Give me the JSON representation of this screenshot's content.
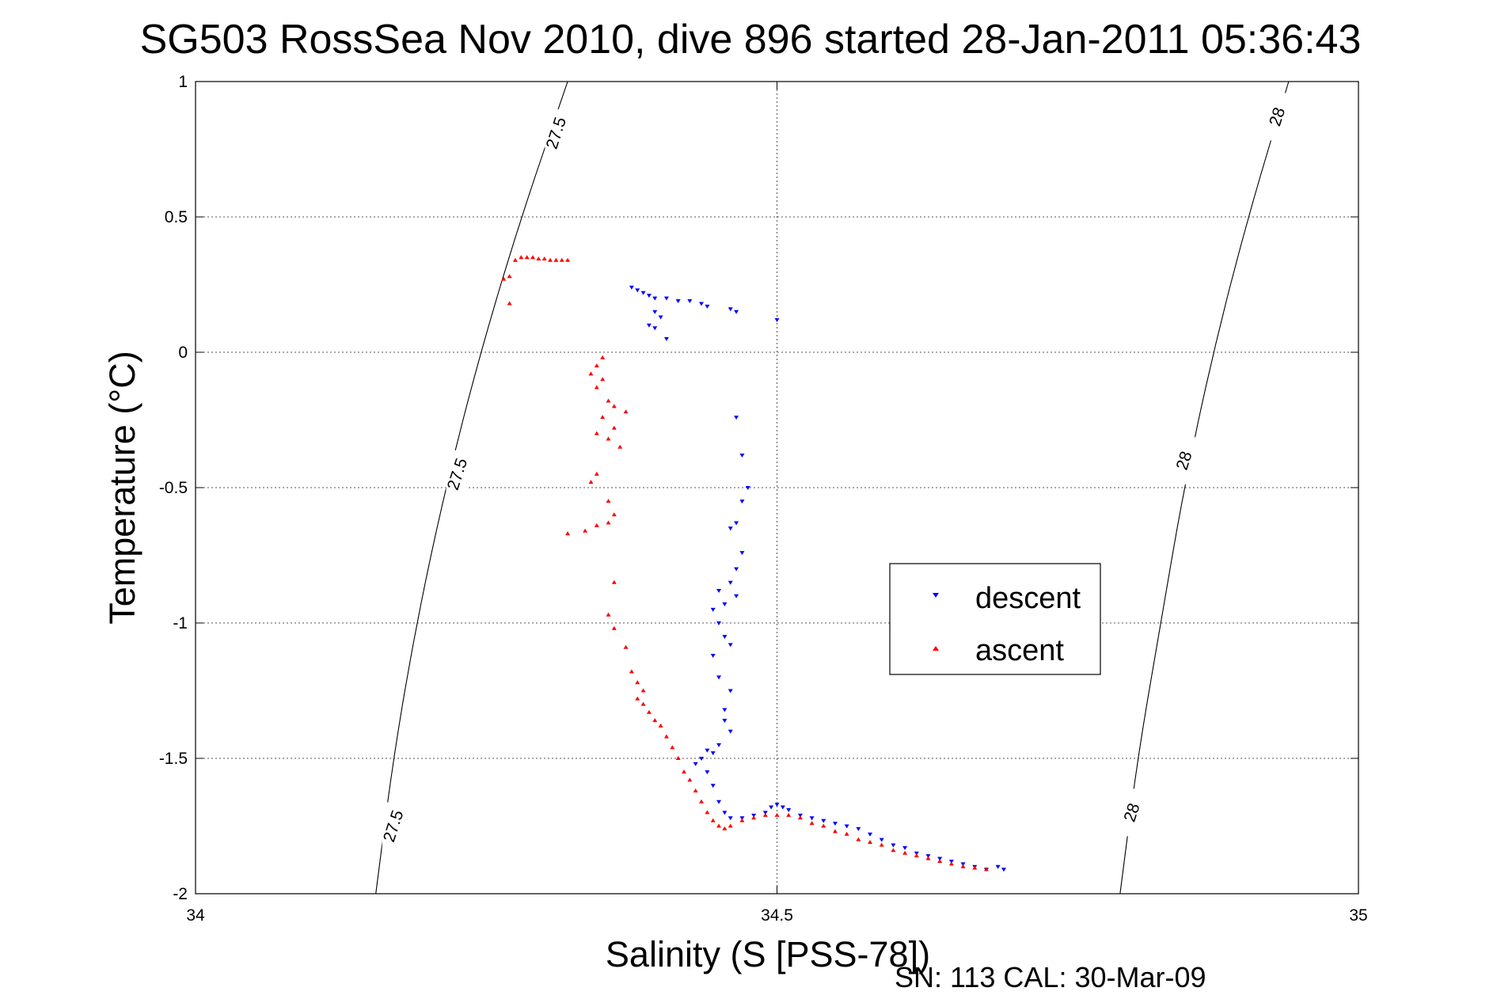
{
  "chart_data": {
    "type": "scatter",
    "title": "SG503 RossSea Nov 2010, dive 896 started 28-Jan-2011 05:36:43",
    "xlabel": "Salinity (S [PSS-78])",
    "ylabel": "Temperature (°C)",
    "xlim": [
      34,
      35
    ],
    "ylim": [
      -2,
      1
    ],
    "xticks": [
      "34",
      "34.5",
      "35"
    ],
    "yticks": [
      "1",
      "0.5",
      "0",
      "-0.5",
      "-1",
      "-1.5",
      "-2"
    ],
    "grid": true,
    "legend_position": "right-center",
    "footer": "SN: 113  CAL: 30-Mar-09",
    "density_contours": [
      {
        "level": "27.5",
        "points": [
          [
            34.32,
            1.0
          ],
          [
            34.28,
            0.5
          ],
          [
            34.245,
            0.0
          ],
          [
            34.215,
            -0.5
          ],
          [
            34.19,
            -1.0
          ],
          [
            34.17,
            -1.5
          ],
          [
            34.155,
            -2.0
          ]
        ],
        "label_positions": [
          [
            34.31,
            0.81
          ],
          [
            34.225,
            -0.45
          ],
          [
            34.17,
            -1.75
          ]
        ]
      },
      {
        "level": "28",
        "points": [
          [
            34.94,
            1.0
          ],
          [
            34.905,
            0.5
          ],
          [
            34.875,
            0.0
          ],
          [
            34.85,
            -0.5
          ],
          [
            34.83,
            -1.0
          ],
          [
            34.81,
            -1.5
          ],
          [
            34.795,
            -2.0
          ]
        ],
        "label_positions": [
          [
            34.93,
            0.87
          ],
          [
            34.85,
            -0.4
          ],
          [
            34.805,
            -1.7
          ]
        ]
      }
    ],
    "series": [
      {
        "name": "descent",
        "color": "#0000ff",
        "marker": "triangle-down",
        "points": [
          [
            34.375,
            0.24
          ],
          [
            34.38,
            0.23
          ],
          [
            34.385,
            0.22
          ],
          [
            34.39,
            0.21
          ],
          [
            34.395,
            0.2
          ],
          [
            34.405,
            0.2
          ],
          [
            34.415,
            0.19
          ],
          [
            34.425,
            0.19
          ],
          [
            34.435,
            0.18
          ],
          [
            34.44,
            0.17
          ],
          [
            34.46,
            0.16
          ],
          [
            34.465,
            0.15
          ],
          [
            34.5,
            0.12
          ],
          [
            34.395,
            0.15
          ],
          [
            34.4,
            0.13
          ],
          [
            34.39,
            0.1
          ],
          [
            34.395,
            0.09
          ],
          [
            34.405,
            0.05
          ],
          [
            34.465,
            -0.24
          ],
          [
            34.47,
            -0.38
          ],
          [
            34.475,
            -0.5
          ],
          [
            34.47,
            -0.55
          ],
          [
            34.465,
            -0.63
          ],
          [
            34.46,
            -0.65
          ],
          [
            34.47,
            -0.74
          ],
          [
            34.465,
            -0.8
          ],
          [
            34.46,
            -0.85
          ],
          [
            34.465,
            -0.9
          ],
          [
            34.45,
            -0.88
          ],
          [
            34.455,
            -0.93
          ],
          [
            34.445,
            -0.95
          ],
          [
            34.45,
            -1.0
          ],
          [
            34.455,
            -1.05
          ],
          [
            34.46,
            -1.08
          ],
          [
            34.445,
            -1.12
          ],
          [
            34.45,
            -1.2
          ],
          [
            34.46,
            -1.25
          ],
          [
            34.455,
            -1.32
          ],
          [
            34.455,
            -1.36
          ],
          [
            34.46,
            -1.4
          ],
          [
            34.45,
            -1.45
          ],
          [
            34.44,
            -1.47
          ],
          [
            34.445,
            -1.48
          ],
          [
            34.435,
            -1.5
          ],
          [
            34.43,
            -1.52
          ],
          [
            34.44,
            -1.55
          ],
          [
            34.445,
            -1.6
          ],
          [
            34.45,
            -1.66
          ],
          [
            34.455,
            -1.7
          ],
          [
            34.46,
            -1.72
          ],
          [
            34.47,
            -1.72
          ],
          [
            34.48,
            -1.71
          ],
          [
            34.49,
            -1.7
          ],
          [
            34.495,
            -1.68
          ],
          [
            34.5,
            -1.67
          ],
          [
            34.505,
            -1.68
          ],
          [
            34.51,
            -1.69
          ],
          [
            34.52,
            -1.71
          ],
          [
            34.53,
            -1.72
          ],
          [
            34.54,
            -1.73
          ],
          [
            34.55,
            -1.74
          ],
          [
            34.56,
            -1.75
          ],
          [
            34.57,
            -1.76
          ],
          [
            34.58,
            -1.78
          ],
          [
            34.59,
            -1.8
          ],
          [
            34.6,
            -1.82
          ],
          [
            34.61,
            -1.83
          ],
          [
            34.62,
            -1.85
          ],
          [
            34.63,
            -1.86
          ],
          [
            34.64,
            -1.87
          ],
          [
            34.65,
            -1.88
          ],
          [
            34.66,
            -1.89
          ],
          [
            34.67,
            -1.9
          ],
          [
            34.68,
            -1.91
          ],
          [
            34.69,
            -1.9
          ],
          [
            34.695,
            -1.91
          ]
        ]
      },
      {
        "name": "ascent",
        "color": "#ff0000",
        "marker": "triangle-up",
        "points": [
          [
            34.28,
            0.35
          ],
          [
            34.285,
            0.35
          ],
          [
            34.29,
            0.35
          ],
          [
            34.295,
            0.345
          ],
          [
            34.3,
            0.345
          ],
          [
            34.305,
            0.34
          ],
          [
            34.31,
            0.34
          ],
          [
            34.315,
            0.34
          ],
          [
            34.32,
            0.34
          ],
          [
            34.275,
            0.34
          ],
          [
            34.27,
            0.28
          ],
          [
            34.265,
            0.27
          ],
          [
            34.27,
            0.18
          ],
          [
            34.35,
            -0.02
          ],
          [
            34.345,
            -0.05
          ],
          [
            34.34,
            -0.08
          ],
          [
            34.35,
            -0.1
          ],
          [
            34.345,
            -0.13
          ],
          [
            34.355,
            -0.18
          ],
          [
            34.36,
            -0.2
          ],
          [
            34.35,
            -0.24
          ],
          [
            34.345,
            -0.3
          ],
          [
            34.355,
            -0.32
          ],
          [
            34.365,
            -0.35
          ],
          [
            34.37,
            -0.22
          ],
          [
            34.36,
            -0.28
          ],
          [
            34.345,
            -0.45
          ],
          [
            34.34,
            -0.48
          ],
          [
            34.355,
            -0.55
          ],
          [
            34.36,
            -0.6
          ],
          [
            34.355,
            -0.63
          ],
          [
            34.345,
            -0.64
          ],
          [
            34.335,
            -0.66
          ],
          [
            34.32,
            -0.67
          ],
          [
            34.36,
            -0.85
          ],
          [
            34.355,
            -0.97
          ],
          [
            34.36,
            -1.02
          ],
          [
            34.37,
            -1.09
          ],
          [
            34.375,
            -1.18
          ],
          [
            34.38,
            -1.22
          ],
          [
            34.385,
            -1.25
          ],
          [
            34.38,
            -1.28
          ],
          [
            34.385,
            -1.3
          ],
          [
            34.39,
            -1.33
          ],
          [
            34.395,
            -1.36
          ],
          [
            34.4,
            -1.38
          ],
          [
            34.405,
            -1.42
          ],
          [
            34.41,
            -1.46
          ],
          [
            34.415,
            -1.5
          ],
          [
            34.42,
            -1.55
          ],
          [
            34.425,
            -1.58
          ],
          [
            34.43,
            -1.62
          ],
          [
            34.435,
            -1.66
          ],
          [
            34.44,
            -1.7
          ],
          [
            34.445,
            -1.73
          ],
          [
            34.45,
            -1.75
          ],
          [
            34.455,
            -1.76
          ],
          [
            34.46,
            -1.75
          ],
          [
            34.47,
            -1.73
          ],
          [
            34.48,
            -1.72
          ],
          [
            34.49,
            -1.71
          ],
          [
            34.5,
            -1.71
          ],
          [
            34.51,
            -1.71
          ],
          [
            34.52,
            -1.72
          ],
          [
            34.53,
            -1.74
          ],
          [
            34.54,
            -1.75
          ],
          [
            34.55,
            -1.77
          ],
          [
            34.56,
            -1.78
          ],
          [
            34.57,
            -1.8
          ],
          [
            34.58,
            -1.81
          ],
          [
            34.59,
            -1.82
          ],
          [
            34.6,
            -1.84
          ],
          [
            34.61,
            -1.85
          ],
          [
            34.62,
            -1.86
          ],
          [
            34.63,
            -1.87
          ],
          [
            34.64,
            -1.88
          ],
          [
            34.65,
            -1.89
          ],
          [
            34.66,
            -1.9
          ],
          [
            34.67,
            -1.905
          ],
          [
            34.68,
            -1.91
          ]
        ]
      }
    ]
  }
}
